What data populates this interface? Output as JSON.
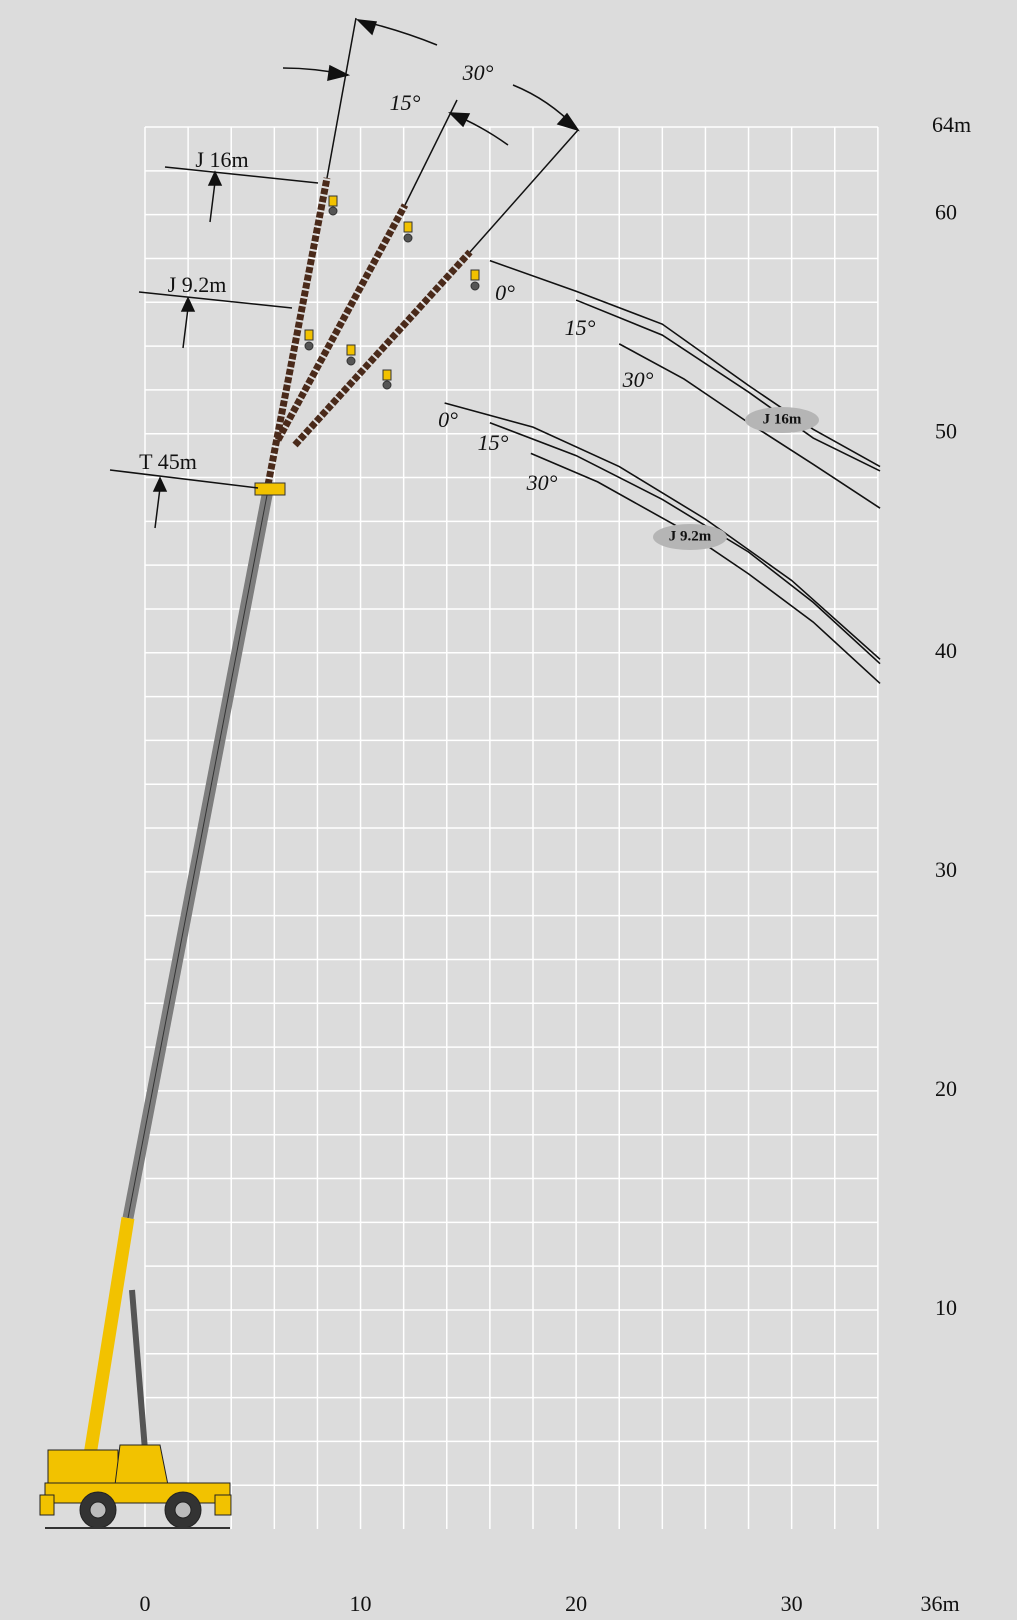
{
  "chart_data": {
    "type": "line",
    "xlim": [
      -4.5,
      36
    ],
    "ylim": [
      0,
      64
    ],
    "xticks": [
      0,
      10,
      20,
      30,
      {
        "value": 36,
        "label": "36m"
      }
    ],
    "yticks": [
      10,
      20,
      30,
      40,
      50,
      60,
      {
        "value": 64,
        "label": "64m"
      }
    ],
    "grid": true,
    "grid_step": 2,
    "annotations": [
      "J 16m",
      "J 9.2m",
      "T 45m",
      "15°",
      "30°"
    ],
    "series": [
      {
        "name": "0°",
        "group": "J 16m",
        "color": "#111111",
        "x": [
          16,
          20,
          24,
          28,
          31,
          34.1
        ],
        "values": [
          57.9,
          56.5,
          55.0,
          52.2,
          50.2,
          48.5
        ]
      },
      {
        "name": "15°",
        "group": "J 16m",
        "color": "#111111",
        "x": [
          20,
          24,
          28,
          31,
          34.1
        ],
        "values": [
          56.1,
          54.5,
          51.9,
          49.8,
          48.3
        ]
      },
      {
        "name": "30°",
        "group": "J 16m",
        "color": "#111111",
        "x": [
          22,
          25,
          28,
          31,
          34.1
        ],
        "values": [
          54.1,
          52.5,
          50.5,
          48.6,
          46.6
        ]
      },
      {
        "name": "0°",
        "group": "J 9.2m",
        "color": "#111111",
        "x": [
          13.9,
          18,
          22,
          26,
          30,
          34.1
        ],
        "values": [
          51.4,
          50.3,
          48.5,
          46.1,
          43.3,
          39.7
        ]
      },
      {
        "name": "15°",
        "group": "J 9.2m",
        "color": "#111111",
        "x": [
          16,
          20,
          24,
          28,
          31,
          34.1
        ],
        "values": [
          50.5,
          49.0,
          47.0,
          44.6,
          42.3,
          39.5
        ]
      },
      {
        "name": "30°",
        "group": "J 9.2m",
        "color": "#111111",
        "x": [
          17.9,
          21,
          25,
          28,
          31,
          34.1
        ],
        "values": [
          49.1,
          47.8,
          45.6,
          43.6,
          41.4,
          38.6
        ]
      }
    ]
  }
}
